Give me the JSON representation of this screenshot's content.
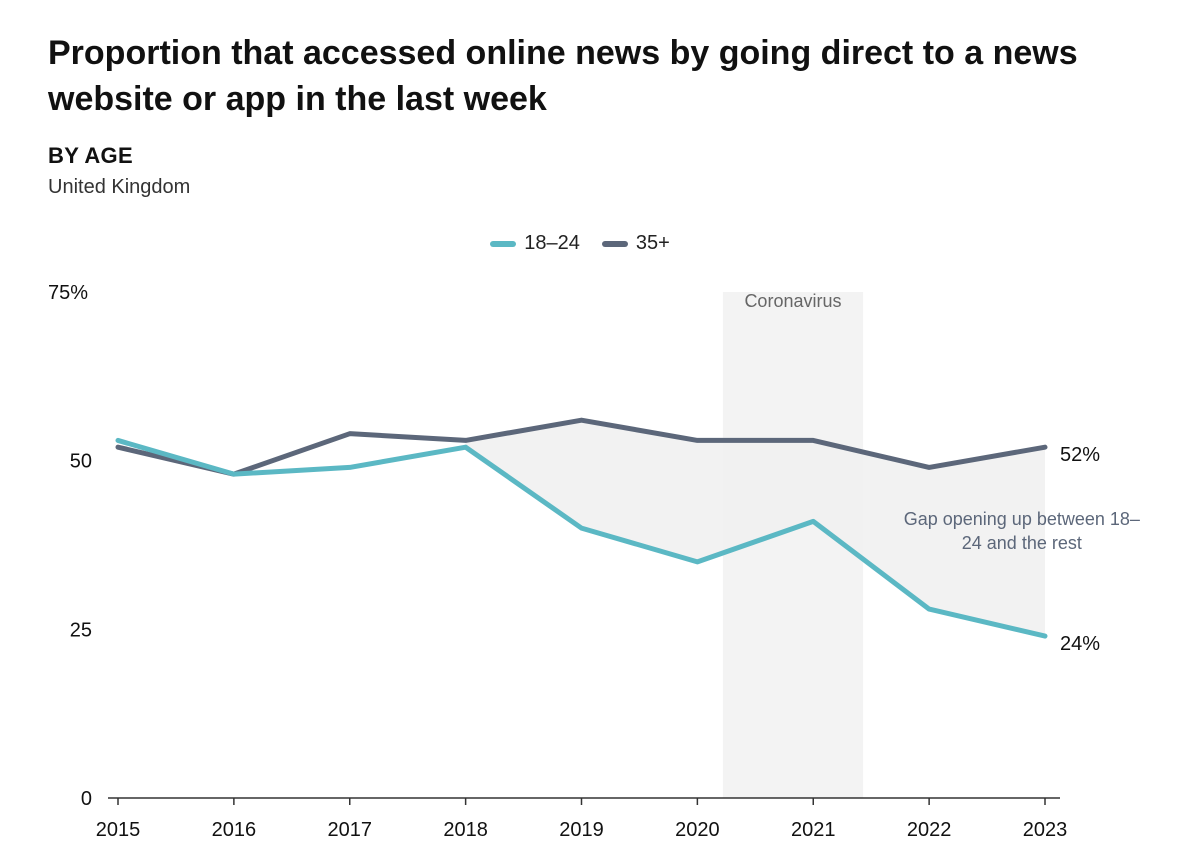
{
  "header": {
    "title": "Proportion that accessed online news by going direct to a news website or app in the last week",
    "subtitle": "BY AGE",
    "region": "United Kingdom"
  },
  "chart_data": {
    "type": "line",
    "x": [
      2015,
      2016,
      2017,
      2018,
      2019,
      2020,
      2021,
      2022,
      2023
    ],
    "x_tick_labels": [
      "2015",
      "2016",
      "2017",
      "2018",
      "2019",
      "2020",
      "2021",
      "2022",
      "2023"
    ],
    "series": [
      {
        "name": "18–24",
        "color": "#5bb8c4",
        "values": [
          53,
          48,
          49,
          52,
          40,
          35,
          41,
          28,
          24
        ],
        "end_label": "24%"
      },
      {
        "name": "35+",
        "color": "#5c677a",
        "values": [
          52,
          48,
          54,
          53,
          56,
          53,
          53,
          49,
          52
        ],
        "end_label": "52%"
      }
    ],
    "ylim": [
      0,
      75
    ],
    "y_ticks": [
      0,
      25,
      50,
      75
    ],
    "y_tick_labels": [
      "0",
      "25",
      "50",
      "75%"
    ],
    "legend_position": "top-center",
    "grid": false,
    "shaded_period": {
      "label": "Coronavirus",
      "from": 2020.22,
      "to": 2021.43,
      "color": "#f3f3f3"
    },
    "gap_fill": {
      "from_year": 2018,
      "color": "#f0f0f0"
    },
    "annotation": {
      "lines": [
        "Gap opening up between 18–",
        "24 and the rest"
      ],
      "at_x": 2022.8,
      "at_y": 40.5,
      "color": "#5c677a"
    }
  }
}
